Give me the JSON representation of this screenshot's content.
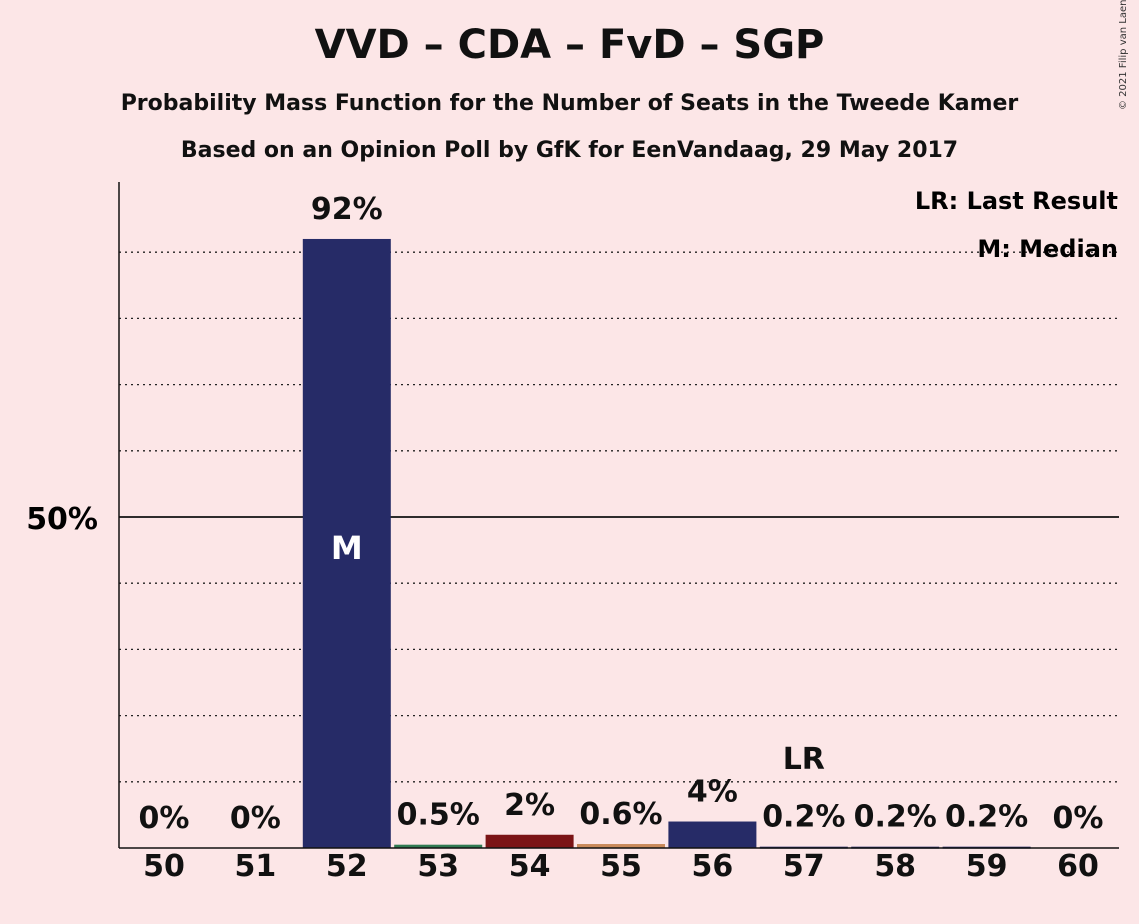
{
  "header": {
    "title": "VVD – CDA – FvD – SGP",
    "subtitle": "Probability Mass Function for the Number of Seats in the Tweede Kamer",
    "subtitle2": "Based on an Opinion Poll by GfK for EenVandaag, 29 May 2017",
    "copyright": "© 2021 Filip van Laenen"
  },
  "legend": {
    "lr": "LR: Last Result",
    "m": "M: Median"
  },
  "colors": {
    "background": "#fce6e7",
    "vvd": "#262b67",
    "sgp": "#7b1416",
    "cda": "#2f7a52",
    "fvd": "#8e2a1e",
    "pale": "#c98a5a"
  },
  "chart_data": {
    "type": "bar",
    "categories": [
      "50",
      "51",
      "52",
      "53",
      "54",
      "55",
      "56",
      "57",
      "58",
      "59",
      "60"
    ],
    "values": [
      0,
      0,
      92,
      0.5,
      2,
      0.6,
      4,
      0.2,
      0.2,
      0.2,
      0
    ],
    "data_labels": [
      "0%",
      "0%",
      "92%",
      "0.5%",
      "2%",
      "0.6%",
      "4%",
      "0.2%",
      "0.2%",
      "0.2%",
      "0%"
    ],
    "bar_colors": [
      "#262b67",
      "#262b67",
      "#262b67",
      "#2f7a52",
      "#7b1416",
      "#c98a5a",
      "#262b67",
      "#262b67",
      "#262b67",
      "#262b67",
      "#262b67"
    ],
    "ylim": [
      0,
      100
    ],
    "y_tick_label": "50%",
    "y_tick_value": 50,
    "gridlines": [
      10,
      20,
      30,
      40,
      60,
      70,
      80,
      90
    ],
    "median_category": "52",
    "median_label": "M",
    "last_result_category": "57",
    "last_result_label": "LR",
    "legend_position": "top-right"
  }
}
